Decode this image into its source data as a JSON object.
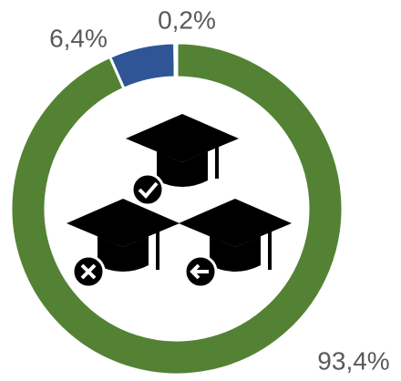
{
  "chart_data": {
    "type": "donut",
    "values": [
      93.4,
      6.4,
      0.2
    ],
    "value_labels": [
      "93,4%",
      "6,4%",
      "0,2%"
    ],
    "colors": [
      "#548235",
      "#2f5597",
      "#a5a5a5"
    ]
  }
}
